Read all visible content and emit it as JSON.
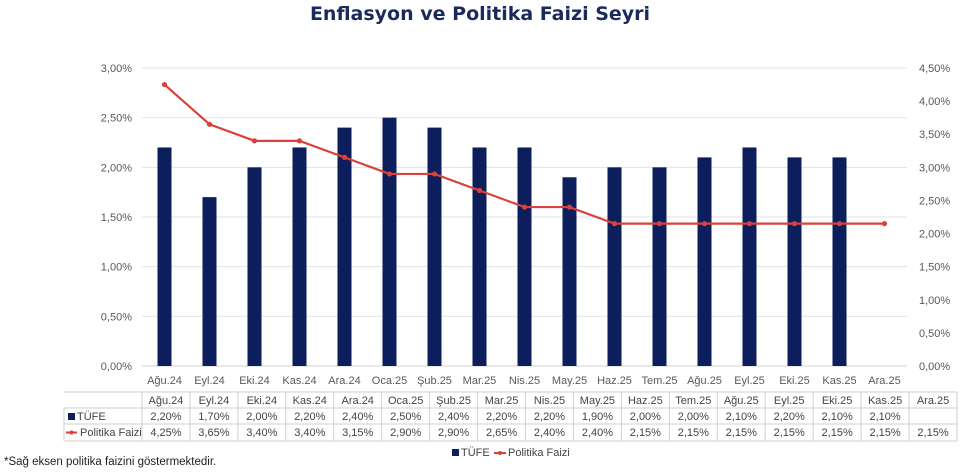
{
  "chart_data": {
    "type": "bar",
    "title": "Enflasyon ve Politika Faizi Seyri",
    "categories": [
      "Ağu.24",
      "Eyl.24",
      "Eki.24",
      "Kas.24",
      "Ara.24",
      "Oca.25",
      "Şub.25",
      "Mar.25",
      "Nis.25",
      "May.25",
      "Haz.25",
      "Tem.25",
      "Ağu.25",
      "Eyl.25",
      "Eki.25",
      "Kas.25",
      "Ara.25"
    ],
    "series": [
      {
        "name": "TÜFE",
        "type": "bar",
        "axis": "left",
        "color": "#0d1e5c",
        "values": [
          2.2,
          1.7,
          2.0,
          2.2,
          2.4,
          2.5,
          2.4,
          2.2,
          2.2,
          1.9,
          2.0,
          2.0,
          2.1,
          2.2,
          2.1,
          2.1,
          null
        ],
        "labels": [
          "2,20%",
          "1,70%",
          "2,00%",
          "2,20%",
          "2,40%",
          "2,50%",
          "2,40%",
          "2,20%",
          "2,20%",
          "1,90%",
          "2,00%",
          "2,00%",
          "2,10%",
          "2,20%",
          "2,10%",
          "2,10%",
          ""
        ]
      },
      {
        "name": "Politika Faizi",
        "type": "line",
        "axis": "right",
        "color": "#d9413a",
        "values": [
          4.25,
          3.65,
          3.4,
          3.4,
          3.15,
          2.9,
          2.9,
          2.65,
          2.4,
          2.4,
          2.15,
          2.15,
          2.15,
          2.15,
          2.15,
          2.15,
          2.15
        ],
        "labels": [
          "4,25%",
          "3,65%",
          "3,40%",
          "3,40%",
          "3,15%",
          "2,90%",
          "2,90%",
          "2,65%",
          "2,40%",
          "2,40%",
          "2,15%",
          "2,15%",
          "2,15%",
          "2,15%",
          "2,15%",
          "2,15%",
          "2,15%"
        ]
      }
    ],
    "y_left": {
      "range": [
        0,
        3.0
      ],
      "ticks": [
        0,
        0.5,
        1.0,
        1.5,
        2.0,
        2.5,
        3.0
      ],
      "tick_labels": [
        "0,00%",
        "0,50%",
        "1,00%",
        "1,50%",
        "2,00%",
        "2,50%",
        "3,00%"
      ]
    },
    "y_right": {
      "range": [
        0,
        4.5
      ],
      "ticks": [
        0,
        0.5,
        1.0,
        1.5,
        2.0,
        2.5,
        3.0,
        3.5,
        4.0,
        4.5
      ],
      "tick_labels": [
        "0,00%",
        "0,50%",
        "1,00%",
        "1,50%",
        "2,00%",
        "2,50%",
        "3,00%",
        "3,50%",
        "4,00%",
        "4,50%"
      ]
    },
    "grid": true,
    "data_table": true,
    "legend": "bottom"
  },
  "footnote": "*Sağ eksen politika faizini göstermektedir."
}
